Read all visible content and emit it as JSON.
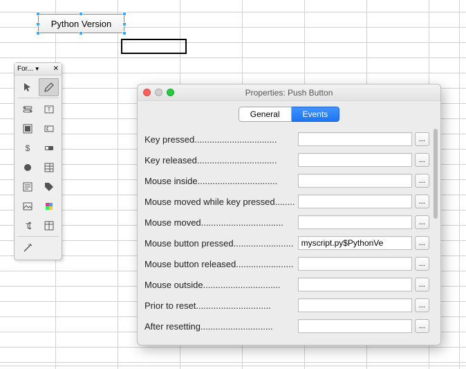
{
  "widget": {
    "label": "Python Version",
    "handle_color": "#3fa7ff"
  },
  "palette": {
    "title": "For...",
    "tools": [
      {
        "name": "pointer-icon"
      },
      {
        "name": "pencil-icon",
        "active": true
      },
      {
        "name": "toggle-icon"
      },
      {
        "name": "label-icon"
      },
      {
        "name": "group-icon"
      },
      {
        "name": "textfield-icon"
      },
      {
        "name": "currency-icon"
      },
      {
        "name": "button-icon"
      },
      {
        "name": "radio-icon"
      },
      {
        "name": "list-icon"
      },
      {
        "name": "form-icon"
      },
      {
        "name": "tag-icon"
      },
      {
        "name": "image-icon"
      },
      {
        "name": "color-icon"
      },
      {
        "name": "textheight-icon"
      },
      {
        "name": "table-icon"
      },
      {
        "name": "wand-icon"
      }
    ]
  },
  "dialog": {
    "title": "Properties: Push Button",
    "tabs": [
      {
        "label": "General",
        "selected": false
      },
      {
        "label": "Events",
        "selected": true
      }
    ],
    "rows": [
      {
        "label": "Key pressed",
        "value": ""
      },
      {
        "label": "Key released",
        "value": ""
      },
      {
        "label": "Mouse inside",
        "value": ""
      },
      {
        "label": "Mouse moved while key pressed",
        "value": ""
      },
      {
        "label": "Mouse moved",
        "value": ""
      },
      {
        "label": "Mouse button pressed",
        "value": "myscript.py$PythonVe"
      },
      {
        "label": "Mouse button released",
        "value": ""
      },
      {
        "label": "Mouse outside",
        "value": ""
      },
      {
        "label": "Prior to reset",
        "value": ""
      },
      {
        "label": "After resetting",
        "value": ""
      }
    ],
    "ellipsis": "...",
    "colors": {
      "accent": "#1f74f1",
      "traffic_red": "#ff5f57",
      "traffic_gray": "#cfcfcf",
      "traffic_green": "#28c840"
    }
  }
}
